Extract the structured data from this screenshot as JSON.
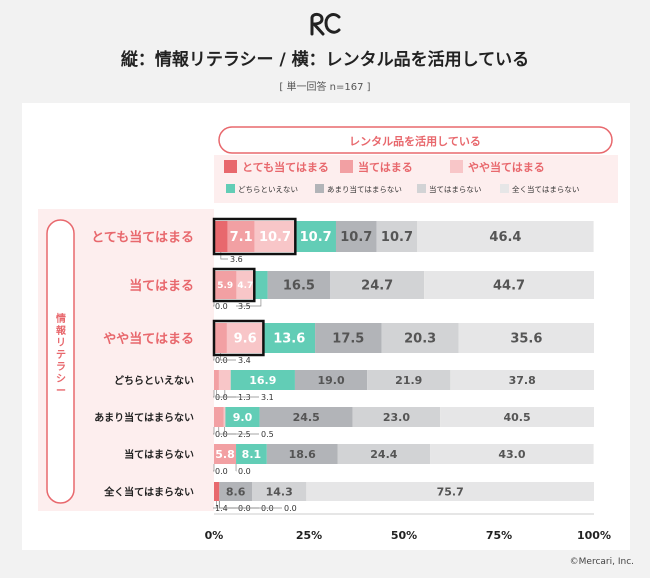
{
  "title": "縦：情報リテラシー / 横：レンタル品を活用している",
  "subtitle": "[ 単一回答 n=167 ]",
  "footer": "©Mercari, Inc.",
  "colors": {
    "totemo": "#e8686d",
    "atehamaru": "#f2a0a3",
    "yaya": "#f8c6c8",
    "dochira": "#62cdb6",
    "amari": "#b2b4b8",
    "ategamaranai": "#d2d3d5",
    "mattaku": "#e6e6e7",
    "accent": "#e8686d",
    "legend_bg": "#fdeeee"
  },
  "chart_data": {
    "type": "bar",
    "orientation": "horizontal",
    "stacked": true,
    "column_header": "レンタル品を活用している",
    "row_header": "情報リテラシー",
    "xlim": [
      0,
      100
    ],
    "x_ticks": [
      "0%",
      "25%",
      "50%",
      "75%",
      "100%"
    ],
    "categories": [
      "とても当てはまる",
      "当てはまる",
      "やや当てはまる",
      "どちらといえない",
      "あまり当てはまらない",
      "当てはまらない",
      "全く当てはまらない"
    ],
    "series": [
      {
        "name": "とても当てはまる",
        "values": [
          3.6,
          0.0,
          0.0,
          0.0,
          0.0,
          0.0,
          1.4
        ]
      },
      {
        "name": "当てはまる",
        "values": [
          7.1,
          5.9,
          3.4,
          1.3,
          2.5,
          5.8,
          0.0
        ]
      },
      {
        "name": "やや当てはまる",
        "values": [
          10.7,
          4.7,
          9.6,
          3.1,
          0.5,
          0.0,
          0.0
        ]
      },
      {
        "name": "どちらといえない",
        "values": [
          10.7,
          3.5,
          13.6,
          16.9,
          9.0,
          8.1,
          0.0
        ]
      },
      {
        "name": "あまり当てはまらない",
        "values": [
          10.7,
          16.5,
          17.5,
          19.0,
          24.5,
          18.6,
          8.6
        ]
      },
      {
        "name": "当てはまらない",
        "values": [
          10.7,
          24.7,
          20.3,
          21.9,
          23.0,
          24.4,
          14.3
        ]
      },
      {
        "name": "全く当てはまらない",
        "values": [
          46.4,
          44.7,
          35.6,
          37.8,
          40.5,
          43.0,
          75.7
        ]
      }
    ],
    "highlight_boxes": [
      {
        "row": 0,
        "series": [
          0,
          1,
          2
        ]
      },
      {
        "row": 1,
        "series": [
          0,
          1,
          2
        ]
      },
      {
        "row": 2,
        "series": [
          0,
          1,
          2
        ]
      }
    ],
    "grid": false,
    "legend_position": "top"
  }
}
